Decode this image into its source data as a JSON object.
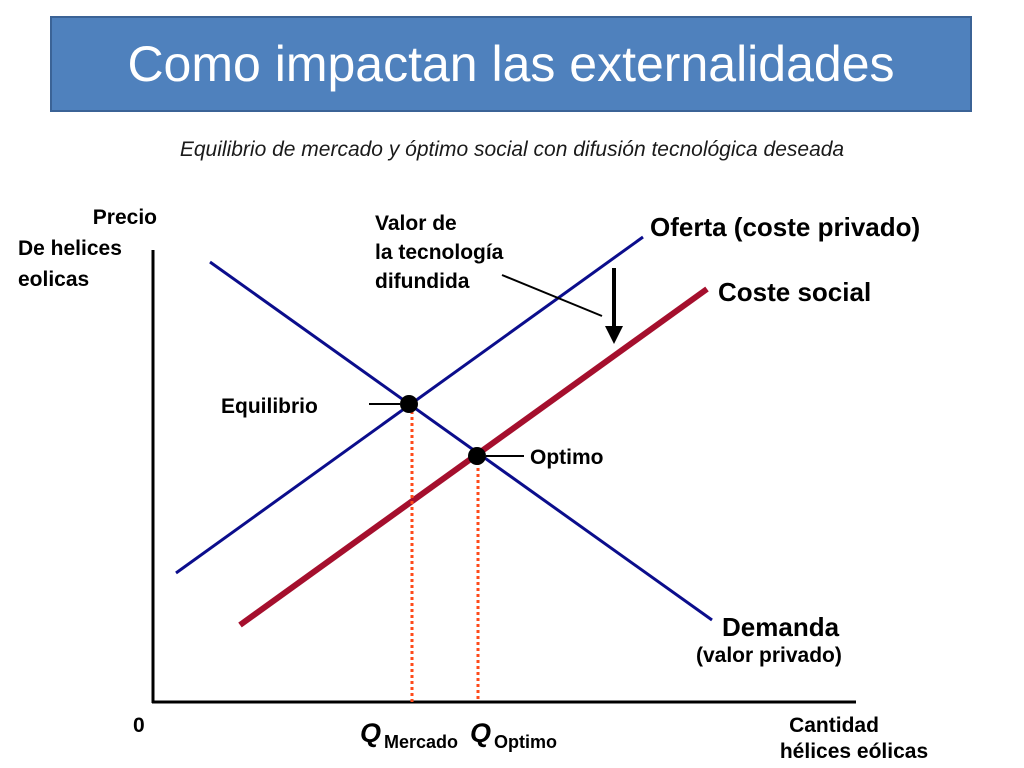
{
  "header": {
    "title": "Como impactan las externalidades",
    "subtitle": "Equilibrio de mercado y óptimo social con difusión tecnológica deseada"
  },
  "diagram": {
    "y_axis_label": {
      "line1": "Precio",
      "line2": "De helices",
      "line3": "eolicas"
    },
    "origin_label": "0",
    "x_axis_label": {
      "line1": "Cantidad",
      "line2": "hélices eólicas"
    },
    "supply_label": "Oferta (coste privado)",
    "social_cost_label": "Coste social",
    "demand_label": "Demanda",
    "demand_sublabel": "(valor privado)",
    "tech_value_label": {
      "line1": "Valor de",
      "line2": "la tecnología",
      "line3": "difundida"
    },
    "equilibrium_label": "Equilibrio",
    "optimum_label": "Optimo",
    "q_market": {
      "q": "Q",
      "sub": "Mercado"
    },
    "q_optimum": {
      "q": "Q",
      "sub": "Optimo"
    }
  },
  "colors": {
    "supply_demand_line": "#0b0d8c",
    "social_cost_line": "#a50f2d",
    "guide_line": "#ff4a1a",
    "title_bar": "#4f81bd"
  }
}
